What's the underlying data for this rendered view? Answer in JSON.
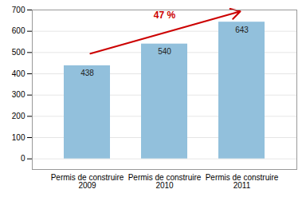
{
  "chart_data": {
    "type": "bar",
    "categories": [
      "Permis de construire\n2009",
      "Permis de construire\n2010",
      "Permis de construire\n2011"
    ],
    "values": [
      438,
      540,
      643
    ],
    "color": "#92C0DC",
    "ylim": [
      -50,
      700
    ],
    "yticks": [
      0,
      100,
      200,
      300,
      400,
      500,
      600,
      700
    ],
    "grid": true,
    "data_labels": true,
    "annotations": [
      {
        "text": "47 %",
        "color": "#CC0000"
      }
    ]
  }
}
